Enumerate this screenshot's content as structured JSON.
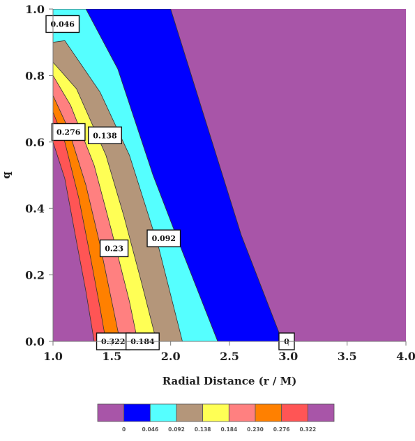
{
  "chart_data": {
    "type": "contour",
    "xlabel": "Radial Distance (r / M)",
    "ylabel": "q",
    "xlim": [
      1.0,
      4.0
    ],
    "ylim": [
      0.0,
      1.0
    ],
    "x_ticks": [
      "1.0",
      "1.5",
      "2.0",
      "2.5",
      "3.0",
      "3.5",
      "4.0"
    ],
    "y_ticks": [
      "0.0",
      "0.2",
      "0.4",
      "0.6",
      "0.8",
      "1.0"
    ],
    "background_color": "#A855A8",
    "band_colors": [
      "#A855A8",
      "#0000FF",
      "#55FFFF",
      "#B4967A",
      "#FFFF55",
      "#FF8080",
      "#FF8000",
      "#FF5555",
      "#A855A8"
    ],
    "contours": [
      {
        "level": "0.046",
        "color": "#0000FF",
        "boundary": [
          [
            1.0,
            1.0
          ],
          [
            2.0,
            1.0
          ],
          [
            2.3,
            0.66
          ],
          [
            2.6,
            0.32
          ],
          [
            2.95,
            0.0
          ]
        ]
      },
      {
        "level": "0.092",
        "color": "#55FFFF",
        "boundary": [
          [
            1.0,
            1.0
          ],
          [
            1.28,
            1.0
          ],
          [
            1.55,
            0.82
          ],
          [
            1.85,
            0.5
          ],
          [
            2.1,
            0.27
          ],
          [
            2.4,
            0.0
          ]
        ]
      },
      {
        "level": "0.138",
        "color": "#B4967A",
        "boundary": [
          [
            1.0,
            0.9
          ],
          [
            1.1,
            0.905
          ],
          [
            1.4,
            0.75
          ],
          [
            1.65,
            0.56
          ],
          [
            1.9,
            0.28
          ],
          [
            2.1,
            0.0
          ]
        ]
      },
      {
        "level": "0.184",
        "color": "#FFFF55",
        "boundary": [
          [
            1.0,
            0.84
          ],
          [
            1.2,
            0.76
          ],
          [
            1.45,
            0.56
          ],
          [
            1.6,
            0.38
          ],
          [
            1.75,
            0.18
          ],
          [
            1.88,
            0.0
          ]
        ]
      },
      {
        "level": "0.23",
        "color": "#FF8080",
        "boundary": [
          [
            1.0,
            0.8
          ],
          [
            1.15,
            0.71
          ],
          [
            1.35,
            0.53
          ],
          [
            1.5,
            0.33
          ],
          [
            1.65,
            0.12
          ],
          [
            1.72,
            0.0
          ]
        ]
      },
      {
        "level": "0.276",
        "color": "#FF8000",
        "boundary": [
          [
            1.0,
            0.74
          ],
          [
            1.13,
            0.64
          ],
          [
            1.28,
            0.47
          ],
          [
            1.4,
            0.29
          ],
          [
            1.5,
            0.12
          ],
          [
            1.57,
            0.0
          ]
        ]
      },
      {
        "level": "0.322",
        "color": "#FF5555",
        "boundary": [
          [
            1.0,
            0.69
          ],
          [
            1.1,
            0.6
          ],
          [
            1.22,
            0.43
          ],
          [
            1.32,
            0.25
          ],
          [
            1.4,
            0.1
          ],
          [
            1.45,
            0.0
          ]
        ]
      },
      {
        "level": "",
        "color": "#A855A8",
        "boundary": [
          [
            1.0,
            0.6
          ],
          [
            1.1,
            0.49
          ],
          [
            1.2,
            0.3
          ],
          [
            1.28,
            0.15
          ],
          [
            1.35,
            0.0
          ]
        ]
      }
    ],
    "contour_labels": [
      {
        "text": "0.046",
        "x": 1.0,
        "y": 0.955
      },
      {
        "text": "0.276",
        "x": 1.05,
        "y": 0.63
      },
      {
        "text": "0.138",
        "x": 1.36,
        "y": 0.62
      },
      {
        "text": "0.23",
        "x": 1.46,
        "y": 0.28
      },
      {
        "text": "0.092",
        "x": 1.86,
        "y": 0.31
      },
      {
        "text": "0.322",
        "x": 1.43,
        "y": 0.0
      },
      {
        "text": "0.184",
        "x": 1.68,
        "y": 0.0
      },
      {
        "text": "0",
        "x": 2.98,
        "y": 0.0
      }
    ],
    "legend": {
      "placement": "bottom",
      "ticks": [
        "0",
        "0.046",
        "0.092",
        "0.138",
        "0.184",
        "0.230",
        "0.276",
        "0.322"
      ]
    }
  }
}
